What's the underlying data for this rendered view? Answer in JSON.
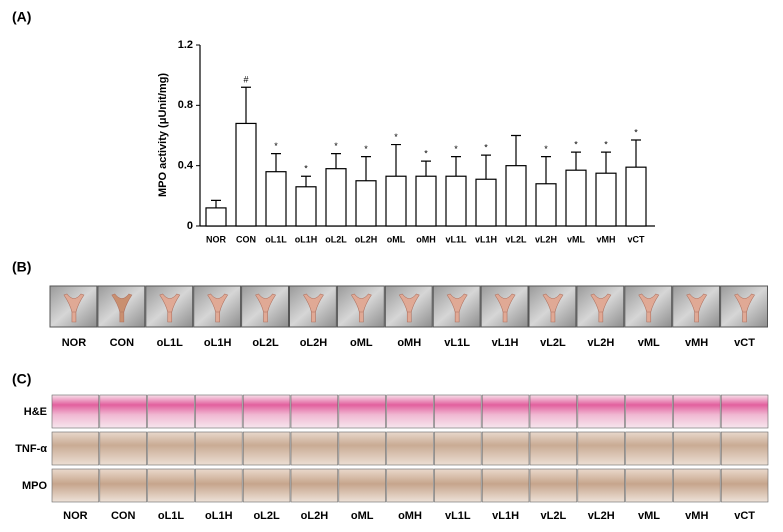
{
  "chart_data": {
    "type": "bar",
    "panel_label": "(A)",
    "y_label": "MPO activity (μUnit/mg)",
    "categories": [
      "NOR",
      "CON",
      "oL1L",
      "oL1H",
      "oL2L",
      "oL2H",
      "oML",
      "oMH",
      "vL1L",
      "vL1H",
      "vL2L",
      "vL2H",
      "vML",
      "vMH",
      "vCT"
    ],
    "values": [
      0.12,
      0.68,
      0.36,
      0.26,
      0.38,
      0.3,
      0.33,
      0.33,
      0.33,
      0.31,
      0.4,
      0.28,
      0.37,
      0.35,
      0.39
    ],
    "errors": [
      0.05,
      0.24,
      0.12,
      0.07,
      0.1,
      0.16,
      0.21,
      0.1,
      0.13,
      0.16,
      0.2,
      0.18,
      0.12,
      0.14,
      0.18
    ],
    "significance": [
      null,
      "#",
      "*",
      "*",
      "*",
      "*",
      "*",
      "*",
      "*",
      "*",
      null,
      "*",
      "*",
      "*",
      "*"
    ],
    "color": "#ffffff",
    "ylim": [
      0,
      1.2
    ],
    "yticks": [
      0,
      0.4,
      0.8,
      1.2
    ]
  },
  "panel_b": {
    "label": "(B)"
  },
  "panel_c": {
    "label": "(C)",
    "rows": [
      "H&E",
      "TNF-α",
      "MPO"
    ]
  }
}
